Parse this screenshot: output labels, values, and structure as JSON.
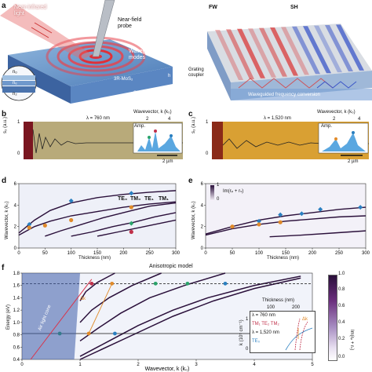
{
  "panels": {
    "a_left": {
      "letter": "a",
      "labels": {
        "nir_light": "Near-infrared\nlight",
        "probe": "Near-field\nprobe",
        "waveguide_modes": "Waveguide\nmodes",
        "material": "3R-MoS₂",
        "substrate": "SiO₂",
        "n_o": "nₒ",
        "n_e": "nₑ",
        "n_2": "n₂",
        "h": "h"
      }
    },
    "a_right": {
      "labels": {
        "fw": "FW",
        "sh": "SH",
        "grating_coupler": "Grating\ncoupler",
        "waveguided_conversion": "Waveguided frequency conversion"
      },
      "colors": {
        "fw": "#d93a3a",
        "sh": "#3a55c8"
      }
    },
    "b": {
      "letter": "b",
      "wavelength_label": "λ = 760 nm",
      "wavevector_title": "Wavevector, k (k₀)",
      "ylabel": "s₃ (a.u.)",
      "inset_ylabel": "Amp.",
      "scale_bar": "2 µm",
      "ticks_y": [
        "1",
        "0"
      ],
      "ticks_k": [
        "2",
        "4"
      ]
    },
    "c": {
      "letter": "c",
      "wavelength_label": "λ = 1,520 nm",
      "wavevector_title": "Wavevector, k (k₀)",
      "ylabel": "s₃ (a.u.)",
      "inset_ylabel": "Amp.",
      "scale_bar": "2 µm",
      "ticks_y": [
        "1",
        "0"
      ],
      "ticks_k": [
        "2",
        "4"
      ]
    },
    "d": {
      "letter": "d",
      "xlabel": "Thickness (nm)",
      "ylabel": "Wavevector, k (k₀)",
      "legend": [
        {
          "label": "TE₀",
          "color": "#2a7fc0"
        },
        {
          "label": "TM₀",
          "color": "#e08a2a"
        },
        {
          "label": "TE₁",
          "color": "#2aa36a"
        },
        {
          "label": "TM₁",
          "color": "#c0304a"
        }
      ]
    },
    "e": {
      "letter": "e",
      "xlabel": "Thickness (nm)",
      "ylabel": "Wavevector, k (k₀)",
      "colorbar_top": "1",
      "colorbar_bottom": "0",
      "colorbar_label": "Im(rₚ + rₛ)"
    },
    "f": {
      "letter": "f",
      "title": "Anisotropic model",
      "xlabel": "Wavevector, k (k₀)",
      "ylabel": "Energy (eV)",
      "air_light_cone": "Air light cone",
      "delta_k": "Δk",
      "colorbar_label": "Im(rₚ + rₛ)",
      "colorbar_ticks": [
        "1.0",
        "0.8",
        "0.6",
        "0.4",
        "0.2",
        "0.0"
      ],
      "inset": {
        "xlabel": "Thickness (nm)",
        "ticks_x": [
          "100",
          "200"
        ],
        "ylabel": "k (10⁵ cm⁻¹)",
        "ticks_y": [
          "1",
          "0"
        ],
        "legend": [
          "λ = 760 nm",
          "TM₁ TE₂ TM₂",
          "λ = 1,520 nm",
          "TE₀"
        ],
        "delta_k": "Δk"
      }
    }
  },
  "chart_data": [
    {
      "type": "scatter",
      "panel": "d",
      "xlabel": "Thickness (nm)",
      "ylabel": "Wavevector, k (k₀)",
      "xlim": [
        0,
        300
      ],
      "ylim": [
        0,
        6
      ],
      "x_ticks": [
        0,
        50,
        100,
        150,
        200,
        250,
        300
      ],
      "y_ticks": [
        0,
        2,
        4,
        6
      ],
      "series": [
        {
          "name": "TE₀",
          "color": "#2a7fc0",
          "x": [
            20,
            100,
            215
          ],
          "y": [
            2.2,
            4.4,
            5.1
          ]
        },
        {
          "name": "TM₀",
          "color": "#e08a2a",
          "x": [
            20,
            50,
            100,
            215
          ],
          "y": [
            1.9,
            2.1,
            2.6,
            3.8
          ]
        },
        {
          "name": "TE₁",
          "color": "#2aa36a",
          "x": [
            215
          ],
          "y": [
            2.3
          ]
        },
        {
          "name": "TM₁",
          "color": "#c0304a",
          "x": [
            215
          ],
          "y": [
            1.5
          ]
        }
      ],
      "curves": [
        {
          "x": [
            0,
            30,
            60,
            100,
            150,
            200,
            250,
            300
          ],
          "y": [
            1.4,
            2.6,
            3.5,
            4.2,
            4.7,
            5.0,
            5.2,
            5.35
          ]
        },
        {
          "x": [
            0,
            30,
            60,
            100,
            150,
            200,
            250,
            300
          ],
          "y": [
            1.2,
            2.0,
            2.5,
            3.0,
            3.4,
            3.8,
            4.1,
            4.3
          ]
        },
        {
          "x": [
            50,
            80,
            120,
            160,
            200,
            250,
            300
          ],
          "y": [
            1.1,
            1.6,
            2.2,
            2.8,
            3.3,
            3.9,
            4.2
          ]
        },
        {
          "x": [
            100,
            140,
            180,
            220,
            260,
            300
          ],
          "y": [
            1.1,
            1.5,
            2.0,
            2.4,
            2.9,
            3.3
          ]
        },
        {
          "x": [
            150,
            190,
            230,
            270,
            300
          ],
          "y": [
            1.1,
            1.5,
            1.9,
            2.3,
            2.6
          ]
        }
      ]
    },
    {
      "type": "scatter",
      "panel": "e",
      "xlabel": "Thickness (nm)",
      "ylabel": "Wavevector, k (k₀)",
      "xlim": [
        0,
        300
      ],
      "ylim": [
        0,
        6
      ],
      "x_ticks": [
        0,
        50,
        100,
        150,
        200,
        250,
        300
      ],
      "y_ticks": [
        0,
        2,
        4,
        6
      ],
      "series": [
        {
          "name": "TE₀",
          "color": "#2a7fc0",
          "x": [
            100,
            140,
            180,
            215,
            290
          ],
          "y": [
            2.5,
            3.1,
            3.2,
            3.6,
            3.8
          ]
        },
        {
          "name": "TM₀",
          "color": "#e08a2a",
          "x": [
            50,
            100,
            140
          ],
          "y": [
            2.0,
            2.2,
            2.4
          ]
        }
      ],
      "curves": [
        {
          "x": [
            0,
            50,
            100,
            150,
            200,
            250,
            300
          ],
          "y": [
            1.3,
            2.0,
            2.6,
            3.0,
            3.3,
            3.6,
            3.8
          ]
        },
        {
          "x": [
            0,
            50,
            100,
            150,
            200,
            250,
            300
          ],
          "y": [
            1.2,
            1.8,
            2.2,
            2.5,
            2.7,
            2.9,
            3.0
          ]
        },
        {
          "x": [
            120,
            180,
            240,
            300
          ],
          "y": [
            1.05,
            1.2,
            1.4,
            1.6
          ]
        }
      ]
    },
    {
      "type": "line",
      "panel": "f",
      "title": "Anisotropic model",
      "xlabel": "Wavevector, k (k₀)",
      "ylabel": "Energy (eV)",
      "xlim": [
        0,
        5
      ],
      "ylim": [
        0.4,
        1.8
      ],
      "x_ticks": [
        0,
        1,
        2,
        3,
        4,
        5
      ],
      "y_ticks": [
        0.4,
        0.6,
        0.8,
        1.0,
        1.2,
        1.4,
        1.6,
        1.8
      ],
      "reference_lines": [
        {
          "y": 1.63,
          "style": "dashed"
        },
        {
          "y": 0.82,
          "style": "solid"
        }
      ],
      "curves": [
        {
          "x": [
            1.0,
            1.8,
            2.6,
            3.3,
            4.0,
            4.8
          ],
          "y": [
            0.4,
            0.75,
            1.1,
            1.35,
            1.55,
            1.72
          ]
        },
        {
          "x": [
            1.0,
            1.5,
            2.0,
            2.6,
            3.2,
            4.0,
            4.8
          ],
          "y": [
            0.45,
            0.7,
            0.95,
            1.2,
            1.4,
            1.6,
            1.75
          ]
        },
        {
          "x": [
            1.0,
            1.3,
            1.7,
            2.2,
            2.8,
            3.5
          ],
          "y": [
            0.7,
            0.9,
            1.15,
            1.4,
            1.6,
            1.8
          ]
        },
        {
          "x": [
            1.0,
            1.2,
            1.5,
            1.9,
            2.4
          ],
          "y": [
            1.0,
            1.2,
            1.4,
            1.6,
            1.8
          ]
        },
        {
          "x": [
            1.0,
            1.1,
            1.3,
            1.6
          ],
          "y": [
            1.35,
            1.5,
            1.65,
            1.8
          ]
        }
      ],
      "markers": [
        {
          "x": 0.65,
          "y": 0.82,
          "color": "#2aa36a"
        },
        {
          "x": 1.15,
          "y": 0.82,
          "color": "#e08a2a"
        },
        {
          "x": 1.6,
          "y": 0.82,
          "color": "#2a7fc0"
        },
        {
          "x": 1.2,
          "y": 1.63,
          "color": "#c0304a"
        },
        {
          "x": 1.55,
          "y": 1.63,
          "color": "#e08a2a"
        },
        {
          "x": 2.3,
          "y": 1.63,
          "color": "#2aa36a"
        },
        {
          "x": 2.85,
          "y": 1.63,
          "color": "#2aa36a"
        },
        {
          "x": 3.5,
          "y": 1.63,
          "color": "#2a7fc0"
        }
      ]
    }
  ]
}
